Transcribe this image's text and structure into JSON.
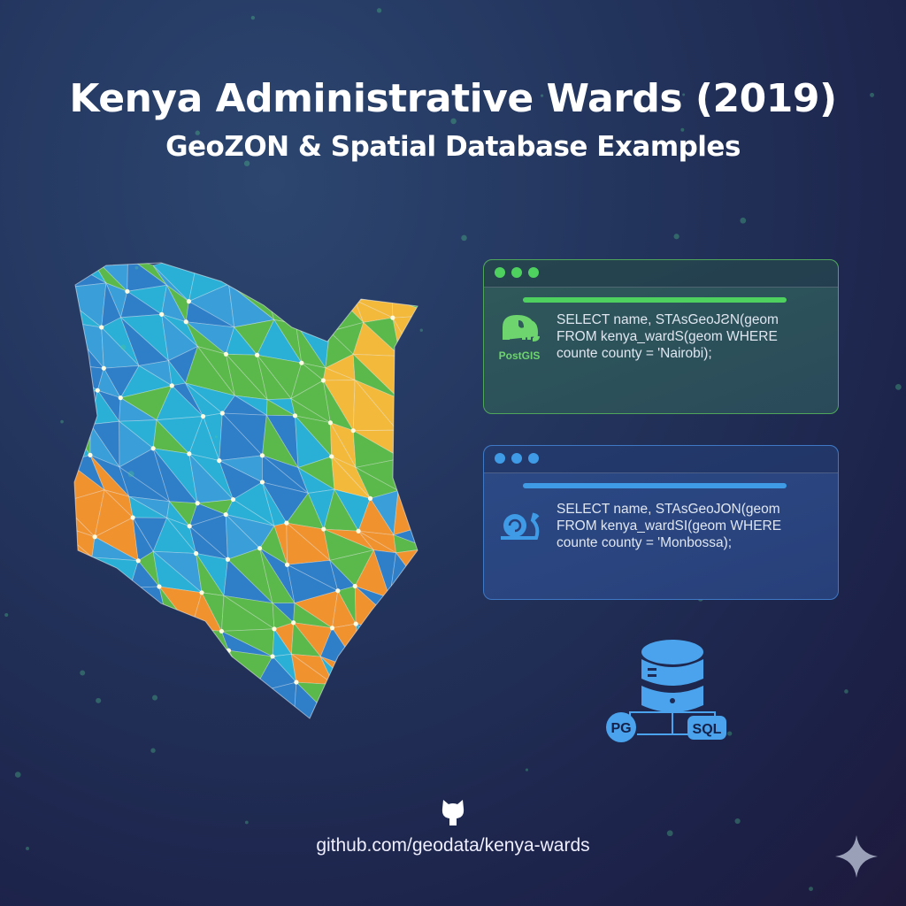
{
  "header": {
    "title": "Kenya Administrative Wards (2019)",
    "subtitle": "GeoZON & Spatial Database Examples"
  },
  "map": {
    "palette": [
      "#2ab0d6",
      "#2f7fc8",
      "#5bb84a",
      "#f3b93a",
      "#f0922e",
      "#3a9fd8"
    ]
  },
  "panels": [
    {
      "logo_icon": "postgis-elephant-icon",
      "logo_label": "PostGIS",
      "accent": "#4fd15f",
      "code": [
        "SELECT name, STAsGeoJƧN(geom",
        "FROM kenya_wardS(geom WHERE",
        "counte county = 'Nairobi);"
      ]
    },
    {
      "logo_icon": "snail-icon",
      "accent": "#3f9be6",
      "code": [
        "SELECT name, STAsGeoJON(geom",
        "FROM kenya_wardSI(geom WHERE",
        "counte county = 'Monbossa);"
      ]
    }
  ],
  "database": {
    "icon": "database-icon",
    "left_badge": "PG",
    "right_badge": "SQL",
    "color": "#4aa3ec"
  },
  "footer": {
    "icon": "github-icon",
    "url": "github.com/geodata/kenya-wards"
  }
}
